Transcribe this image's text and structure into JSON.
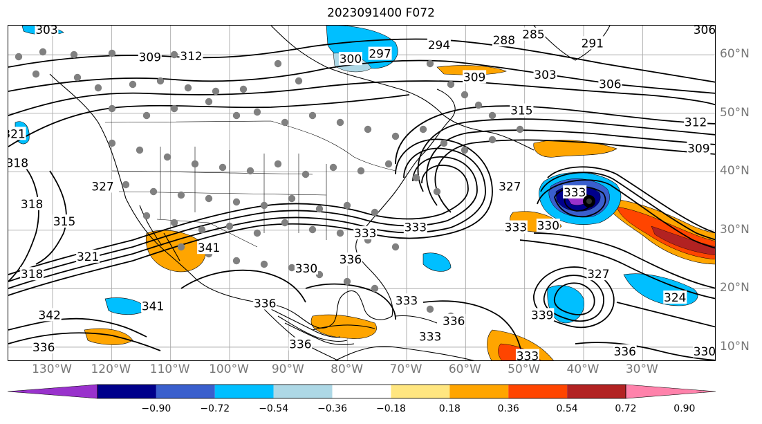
{
  "title": "2023091400 F072",
  "map": {
    "lon_labels": [
      {
        "lon": -130,
        "text": "130°W"
      },
      {
        "lon": -120,
        "text": "120°W"
      },
      {
        "lon": -110,
        "text": "110°W"
      },
      {
        "lon": -100,
        "text": "100°W"
      },
      {
        "lon": -90,
        "text": "90°W"
      },
      {
        "lon": -80,
        "text": "80°W"
      },
      {
        "lon": -70,
        "text": "70°W"
      },
      {
        "lon": -60,
        "text": "60°W"
      },
      {
        "lon": -50,
        "text": "50°W"
      },
      {
        "lon": -40,
        "text": "40°W"
      },
      {
        "lon": -30,
        "text": "30°W"
      }
    ],
    "lat_labels": [
      {
        "lat": 60,
        "text": "60°N"
      },
      {
        "lat": 50,
        "text": "50°N"
      },
      {
        "lat": 40,
        "text": "40°N"
      },
      {
        "lat": 30,
        "text": "30°N"
      },
      {
        "lat": 20,
        "text": "20°N"
      },
      {
        "lat": 10,
        "text": "10°N"
      }
    ],
    "lon_range": [
      -137.5,
      -17.5
    ],
    "lat_range": [
      7.5,
      65
    ],
    "contour_labels": [
      {
        "text": "303",
        "lon": -131,
        "lat": 64.3
      },
      {
        "text": "309",
        "lon": -113.5,
        "lat": 59.6
      },
      {
        "text": "312",
        "lon": -106.5,
        "lat": 59.8
      },
      {
        "text": "300",
        "lon": -79.5,
        "lat": 59.3
      },
      {
        "text": "297",
        "lon": -74.5,
        "lat": 60.2
      },
      {
        "text": "294",
        "lon": -64.5,
        "lat": 61.7
      },
      {
        "text": "288",
        "lon": -53.5,
        "lat": 62.5
      },
      {
        "text": "285",
        "lon": -48.5,
        "lat": 63.5
      },
      {
        "text": "291",
        "lon": -38.5,
        "lat": 62.0
      },
      {
        "text": "306",
        "lon": -19.5,
        "lat": 64.3
      },
      {
        "text": "309",
        "lon": -58.5,
        "lat": 56.2
      },
      {
        "text": "303",
        "lon": -46.5,
        "lat": 56.6
      },
      {
        "text": "306",
        "lon": -35.5,
        "lat": 55.0
      },
      {
        "text": "315",
        "lon": -50.5,
        "lat": 50.5
      },
      {
        "text": "312",
        "lon": -21.0,
        "lat": 48.5
      },
      {
        "text": "309",
        "lon": -20.5,
        "lat": 44.0
      },
      {
        "text": "321",
        "lon": -136.5,
        "lat": 46.5
      },
      {
        "text": "318",
        "lon": -136.0,
        "lat": 41.5
      },
      {
        "text": "318",
        "lon": -133.5,
        "lat": 34.5
      },
      {
        "text": "315",
        "lon": -128.0,
        "lat": 31.5
      },
      {
        "text": "327",
        "lon": -121.5,
        "lat": 37.5
      },
      {
        "text": "327",
        "lon": -52.5,
        "lat": 37.5
      },
      {
        "text": "321",
        "lon": -124.0,
        "lat": 25.5
      },
      {
        "text": "318",
        "lon": -133.5,
        "lat": 22.5
      },
      {
        "text": "341",
        "lon": -103.5,
        "lat": 27.0
      },
      {
        "text": "330",
        "lon": -87.0,
        "lat": 23.5
      },
      {
        "text": "333",
        "lon": -77.0,
        "lat": 29.5
      },
      {
        "text": "336",
        "lon": -79.5,
        "lat": 25.0
      },
      {
        "text": "333",
        "lon": -68.5,
        "lat": 30.5
      },
      {
        "text": "333",
        "lon": -51.5,
        "lat": 30.5
      },
      {
        "text": "330",
        "lon": -46.0,
        "lat": 30.8
      },
      {
        "text": "333",
        "lon": -41.5,
        "lat": 36.5
      },
      {
        "text": "327",
        "lon": -37.5,
        "lat": 22.5
      },
      {
        "text": "324",
        "lon": -24.5,
        "lat": 18.5
      },
      {
        "text": "341",
        "lon": -113.0,
        "lat": 17.0
      },
      {
        "text": "342",
        "lon": -130.5,
        "lat": 15.5
      },
      {
        "text": "336",
        "lon": -94.0,
        "lat": 17.5
      },
      {
        "text": "333",
        "lon": -70.0,
        "lat": 18.0
      },
      {
        "text": "333",
        "lon": -66.0,
        "lat": 11.8
      },
      {
        "text": "336",
        "lon": -88.0,
        "lat": 10.5
      },
      {
        "text": "336",
        "lon": -131.5,
        "lat": 10.0
      },
      {
        "text": "333",
        "lon": -49.5,
        "lat": 8.5
      },
      {
        "text": "336",
        "lon": -33.0,
        "lat": 9.3
      },
      {
        "text": "330",
        "lon": -19.5,
        "lat": 9.3
      },
      {
        "text": "339",
        "lon": -47.0,
        "lat": 15.5
      },
      {
        "text": "336",
        "lon": -62.0,
        "lat": 14.5
      }
    ]
  },
  "colorbar": {
    "labels": [
      "−0.90",
      "−0.72",
      "−0.54",
      "−0.36",
      "−0.18",
      "0.18",
      "0.36",
      "0.54",
      "0.72",
      "0.90"
    ],
    "colors": [
      "#9932cc",
      "#00008b",
      "#3a5fcd",
      "#00bfff",
      "#add8e6",
      "#ffffff",
      "#ffe680",
      "#ffa500",
      "#ff4500",
      "#b22222",
      "#ff82ab"
    ]
  }
}
